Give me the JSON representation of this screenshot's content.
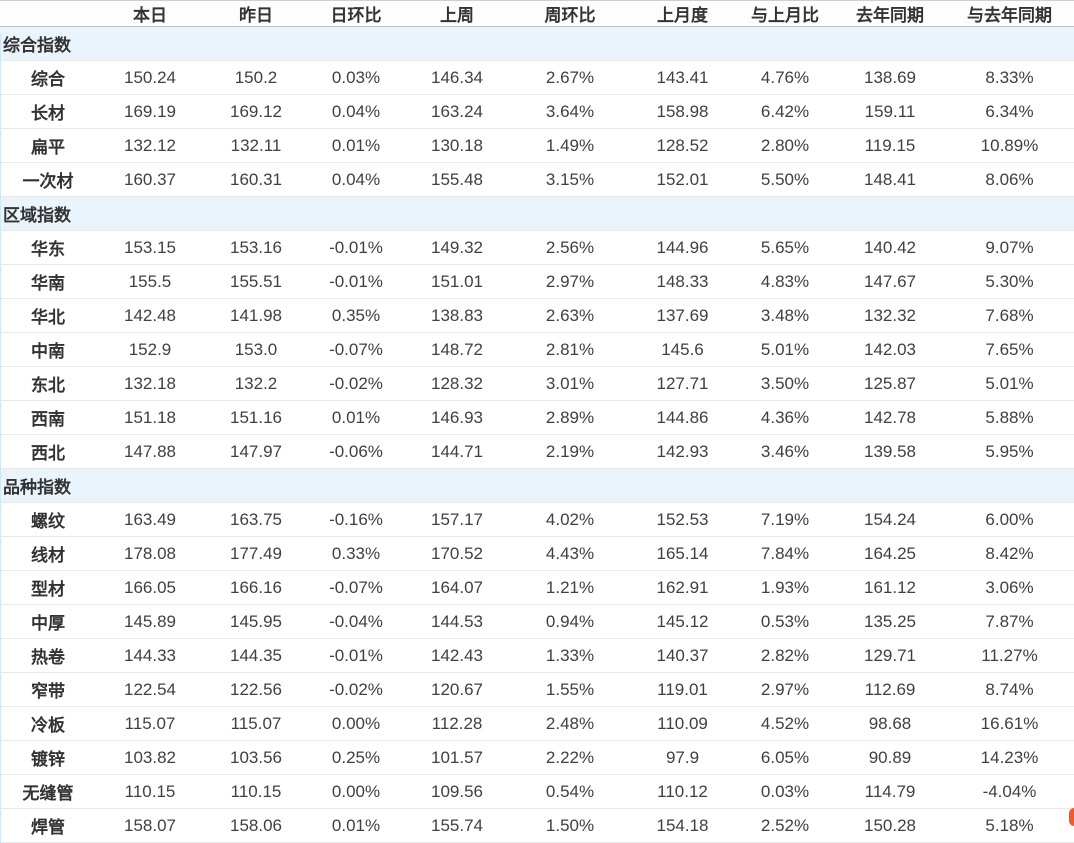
{
  "chart_data": {
    "type": "table",
    "columns": [
      "",
      "本日",
      "昨日",
      "日环比",
      "上周",
      "周环比",
      "上月度",
      "与上月比",
      "去年同期",
      "与去年同期"
    ],
    "percent_value_indices": [
      2,
      4,
      6,
      8
    ],
    "sections": [
      {
        "title": "综合指数",
        "rows": [
          {
            "label": "综合",
            "values": [
              "150.24",
              "150.2",
              "0.03%",
              "146.34",
              "2.67%",
              "143.41",
              "4.76%",
              "138.69",
              "8.33%"
            ]
          },
          {
            "label": "长材",
            "values": [
              "169.19",
              "169.12",
              "0.04%",
              "163.24",
              "3.64%",
              "158.98",
              "6.42%",
              "159.11",
              "6.34%"
            ]
          },
          {
            "label": "扁平",
            "values": [
              "132.12",
              "132.11",
              "0.01%",
              "130.18",
              "1.49%",
              "128.52",
              "2.80%",
              "119.15",
              "10.89%"
            ]
          },
          {
            "label": "一次材",
            "values": [
              "160.37",
              "160.31",
              "0.04%",
              "155.48",
              "3.15%",
              "152.01",
              "5.50%",
              "148.41",
              "8.06%"
            ]
          }
        ]
      },
      {
        "title": "区域指数",
        "rows": [
          {
            "label": "华东",
            "values": [
              "153.15",
              "153.16",
              "-0.01%",
              "149.32",
              "2.56%",
              "144.96",
              "5.65%",
              "140.42",
              "9.07%"
            ]
          },
          {
            "label": "华南",
            "values": [
              "155.5",
              "155.51",
              "-0.01%",
              "151.01",
              "2.97%",
              "148.33",
              "4.83%",
              "147.67",
              "5.30%"
            ]
          },
          {
            "label": "华北",
            "values": [
              "142.48",
              "141.98",
              "0.35%",
              "138.83",
              "2.63%",
              "137.69",
              "3.48%",
              "132.32",
              "7.68%"
            ]
          },
          {
            "label": "中南",
            "values": [
              "152.9",
              "153.0",
              "-0.07%",
              "148.72",
              "2.81%",
              "145.6",
              "5.01%",
              "142.03",
              "7.65%"
            ]
          },
          {
            "label": "东北",
            "values": [
              "132.18",
              "132.2",
              "-0.02%",
              "128.32",
              "3.01%",
              "127.71",
              "3.50%",
              "125.87",
              "5.01%"
            ]
          },
          {
            "label": "西南",
            "values": [
              "151.18",
              "151.16",
              "0.01%",
              "146.93",
              "2.89%",
              "144.86",
              "4.36%",
              "142.78",
              "5.88%"
            ]
          },
          {
            "label": "西北",
            "values": [
              "147.88",
              "147.97",
              "-0.06%",
              "144.71",
              "2.19%",
              "142.93",
              "3.46%",
              "139.58",
              "5.95%"
            ]
          }
        ]
      },
      {
        "title": "品种指数",
        "rows": [
          {
            "label": "螺纹",
            "values": [
              "163.49",
              "163.75",
              "-0.16%",
              "157.17",
              "4.02%",
              "152.53",
              "7.19%",
              "154.24",
              "6.00%"
            ]
          },
          {
            "label": "线材",
            "values": [
              "178.08",
              "177.49",
              "0.33%",
              "170.52",
              "4.43%",
              "165.14",
              "7.84%",
              "164.25",
              "8.42%"
            ]
          },
          {
            "label": "型材",
            "values": [
              "166.05",
              "166.16",
              "-0.07%",
              "164.07",
              "1.21%",
              "162.91",
              "1.93%",
              "161.12",
              "3.06%"
            ]
          },
          {
            "label": "中厚",
            "values": [
              "145.89",
              "145.95",
              "-0.04%",
              "144.53",
              "0.94%",
              "145.12",
              "0.53%",
              "135.25",
              "7.87%"
            ]
          },
          {
            "label": "热卷",
            "values": [
              "144.33",
              "144.35",
              "-0.01%",
              "142.43",
              "1.33%",
              "140.37",
              "2.82%",
              "129.71",
              "11.27%"
            ]
          },
          {
            "label": "窄带",
            "values": [
              "122.54",
              "122.56",
              "-0.02%",
              "120.67",
              "1.55%",
              "119.01",
              "2.97%",
              "112.69",
              "8.74%"
            ]
          },
          {
            "label": "冷板",
            "values": [
              "115.07",
              "115.07",
              "0.00%",
              "112.28",
              "2.48%",
              "110.09",
              "4.52%",
              "98.68",
              "16.61%"
            ]
          },
          {
            "label": "镀锌",
            "values": [
              "103.82",
              "103.56",
              "0.25%",
              "101.57",
              "2.22%",
              "97.9",
              "6.05%",
              "90.89",
              "14.23%"
            ]
          },
          {
            "label": "无缝管",
            "values": [
              "110.15",
              "110.15",
              "0.00%",
              "109.56",
              "0.54%",
              "110.12",
              "0.03%",
              "114.79",
              "-4.04%"
            ]
          },
          {
            "label": "焊管",
            "values": [
              "158.07",
              "158.06",
              "0.01%",
              "155.74",
              "1.50%",
              "154.18",
              "2.52%",
              "150.28",
              "5.18%"
            ]
          }
        ]
      }
    ]
  },
  "colors": {
    "positive_pct": "#e4262d",
    "negative_pct": "#2a8c3e",
    "zero_pct": "#404040",
    "value_text": "#404040",
    "header_text": "#333333",
    "section_row_bg": "#e9f4fc",
    "row_border": "#e9e9e9",
    "header_border": "#c3c3c3",
    "left_edge_line": "#cde7f6",
    "clipped_artifact": "#f05a28"
  }
}
